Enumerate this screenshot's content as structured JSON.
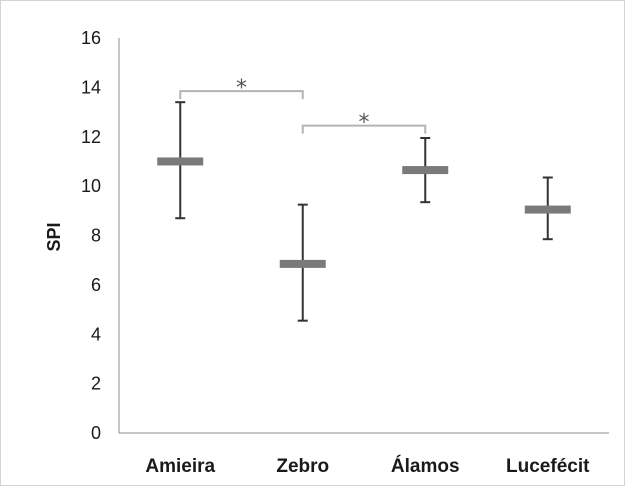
{
  "chart_data": {
    "type": "box",
    "ylabel": "SPI",
    "ylim": [
      0,
      16
    ],
    "yticks": [
      0,
      2,
      4,
      6,
      8,
      10,
      12,
      14,
      16
    ],
    "grid": false,
    "categories": [
      "Amieira",
      "Zebro",
      "Álamos",
      "Lucefécit"
    ],
    "mean": [
      11.0,
      6.85,
      10.65,
      9.05
    ],
    "upper": [
      13.4,
      9.25,
      11.95,
      10.35
    ],
    "lower": [
      8.7,
      4.55,
      9.35,
      7.85
    ],
    "significance": [
      {
        "from": 0,
        "to": 1,
        "label": "*",
        "y": 13.85
      },
      {
        "from": 1,
        "to": 2,
        "label": "*",
        "y": 12.45
      }
    ],
    "colors": {
      "mean_bar": "#7a7a7a",
      "whisker": "#333333",
      "axis": "#8c8c8c",
      "bracket": "#b4b4b4"
    }
  }
}
